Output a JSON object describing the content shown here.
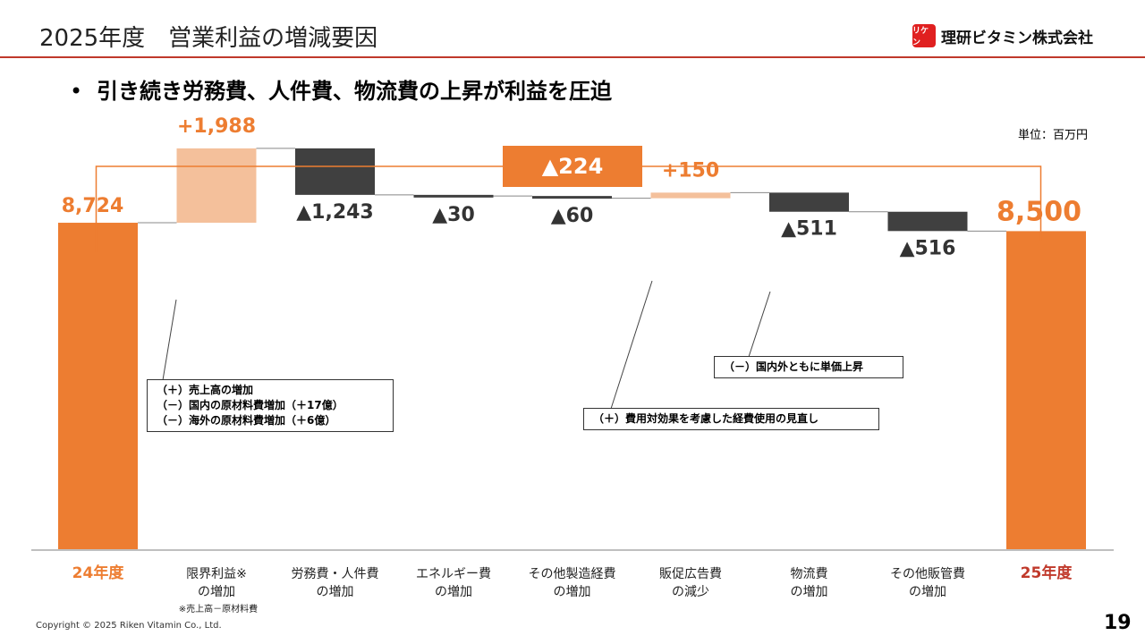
{
  "header": {
    "title": "2025年度　営業利益の増減要因",
    "logo_text": "理研ビタミン株式会社",
    "logo_mark": "リケン"
  },
  "headline": "引き続き労務費、人件費、物流費の上昇が利益を圧迫",
  "bullet_symbol": "•",
  "unit": "単位：百万円",
  "total_change_label": "▲224",
  "footnote": "※売上高－原材料費",
  "copyright": "Copyright © 2025 Riken Vitamin Co., Ltd.",
  "page_number": "19",
  "notes": {
    "marginal": [
      "（＋）売上高の増加",
      "（－）国内の原材料費増加（＋17億）",
      "（－）海外の原材料費増加（＋6億）"
    ],
    "promo": [
      "（＋）費用対効果を考慮した経費使用の見直し"
    ],
    "logistics": [
      "（－）国内外ともに単価上昇"
    ]
  },
  "colors": {
    "total": "#ed7d31",
    "increase": "#f4c09b",
    "decrease": "#404040",
    "accent_red": "#c0392b",
    "total_label_end": "#c0392b"
  },
  "chart_data": {
    "type": "waterfall",
    "ylim": [
      0,
      10900
    ],
    "categories": [
      {
        "label": "24年度",
        "kind": "total",
        "value": 8724,
        "display": "8,724"
      },
      {
        "label": "限界利益※\nの増加",
        "kind": "increase",
        "value": 1988,
        "display": "+1,988"
      },
      {
        "label": "労務費・人件費\nの増加",
        "kind": "decrease",
        "value": -1243,
        "display": "▲1,243"
      },
      {
        "label": "エネルギー費\nの増加",
        "kind": "decrease",
        "value": -30,
        "display": "▲30"
      },
      {
        "label": "その他製造経費\nの増加",
        "kind": "decrease",
        "value": -60,
        "display": "▲60"
      },
      {
        "label": "販促広告費\nの減少",
        "kind": "increase",
        "value": 150,
        "display": "+150"
      },
      {
        "label": "物流費\nの増加",
        "kind": "decrease",
        "value": -511,
        "display": "▲511"
      },
      {
        "label": "その他販管費\nの増加",
        "kind": "decrease",
        "value": -516,
        "display": "▲516"
      },
      {
        "label": "25年度",
        "kind": "total",
        "value": 8500,
        "display": "8,500"
      }
    ]
  }
}
